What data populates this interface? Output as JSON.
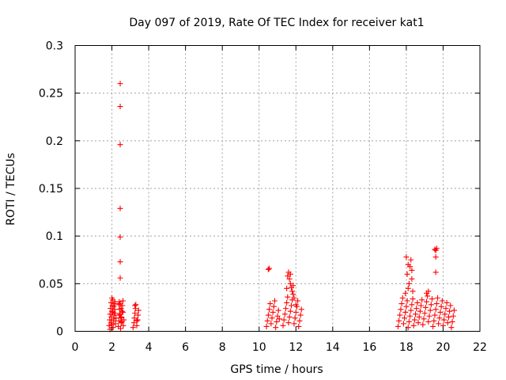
{
  "chart_data": {
    "type": "scatter",
    "title": "Day 097 of 2019, Rate Of TEC Index for receiver kat1",
    "xlabel": "GPS time / hours",
    "ylabel": "ROTI / TECUs",
    "xlim": [
      0,
      22
    ],
    "ylim": [
      0,
      0.3
    ],
    "xticks": [
      0,
      2,
      4,
      6,
      8,
      10,
      12,
      14,
      16,
      18,
      20,
      22
    ],
    "xtick_labels": [
      "0",
      "2",
      "4",
      "6",
      "8",
      "10",
      "12",
      "14",
      "16",
      "18",
      "20",
      "22"
    ],
    "yticks": [
      0,
      0.05,
      0.1,
      0.15,
      0.2,
      0.25,
      0.3
    ],
    "ytick_labels": [
      "0",
      "0.05",
      "0.1",
      "0.15",
      "0.2",
      "0.25",
      "0.3"
    ],
    "grid": true,
    "marker": "+",
    "color": "#ff0000",
    "series": [
      {
        "name": "kat1",
        "points": [
          [
            1.85,
            0.006
          ],
          [
            1.88,
            0.012
          ],
          [
            1.9,
            0.018
          ],
          [
            1.92,
            0.024
          ],
          [
            1.95,
            0.009
          ],
          [
            1.97,
            0.015
          ],
          [
            2.0,
            0.021
          ],
          [
            2.02,
            0.027
          ],
          [
            2.05,
            0.033
          ],
          [
            2.07,
            0.004
          ],
          [
            2.1,
            0.011
          ],
          [
            2.12,
            0.017
          ],
          [
            2.15,
            0.023
          ],
          [
            2.17,
            0.029
          ],
          [
            2.2,
            0.008
          ],
          [
            2.22,
            0.014
          ],
          [
            1.95,
            0.03
          ],
          [
            2.0,
            0.035
          ],
          [
            2.05,
            0.02
          ],
          [
            2.1,
            0.026
          ],
          [
            2.15,
            0.031
          ],
          [
            1.9,
            0.002
          ],
          [
            2.0,
            0.007
          ],
          [
            2.1,
            0.013
          ],
          [
            2.18,
            0.019
          ],
          [
            2.35,
            0.005
          ],
          [
            2.38,
            0.011
          ],
          [
            2.4,
            0.017
          ],
          [
            2.42,
            0.023
          ],
          [
            2.45,
            0.029
          ],
          [
            2.47,
            0.003
          ],
          [
            2.5,
            0.009
          ],
          [
            2.52,
            0.015
          ],
          [
            2.55,
            0.021
          ],
          [
            2.57,
            0.027
          ],
          [
            2.6,
            0.032
          ],
          [
            2.62,
            0.006
          ],
          [
            2.65,
            0.012
          ],
          [
            2.4,
            0.031
          ],
          [
            2.45,
            0.018
          ],
          [
            2.5,
            0.024
          ],
          [
            2.55,
            0.01
          ],
          [
            2.6,
            0.02
          ],
          [
            2.38,
            0.028
          ],
          [
            2.48,
            0.014
          ],
          [
            2.45,
            0.26
          ],
          [
            2.45,
            0.236
          ],
          [
            2.45,
            0.196
          ],
          [
            2.45,
            0.129
          ],
          [
            2.45,
            0.099
          ],
          [
            2.45,
            0.073
          ],
          [
            2.45,
            0.056
          ],
          [
            3.15,
            0.004
          ],
          [
            3.2,
            0.009
          ],
          [
            3.22,
            0.014
          ],
          [
            3.25,
            0.019
          ],
          [
            3.28,
            0.024
          ],
          [
            3.3,
            0.028
          ],
          [
            3.35,
            0.006
          ],
          [
            3.4,
            0.012
          ],
          [
            3.42,
            0.017
          ],
          [
            3.45,
            0.022
          ],
          [
            3.25,
            0.027
          ],
          [
            3.35,
            0.011
          ],
          [
            10.4,
            0.005
          ],
          [
            10.45,
            0.011
          ],
          [
            10.5,
            0.017
          ],
          [
            10.55,
            0.023
          ],
          [
            10.6,
            0.029
          ],
          [
            10.65,
            0.008
          ],
          [
            10.7,
            0.014
          ],
          [
            10.75,
            0.02
          ],
          [
            10.8,
            0.026
          ],
          [
            10.85,
            0.032
          ],
          [
            10.9,
            0.004
          ],
          [
            10.95,
            0.01
          ],
          [
            11.0,
            0.016
          ],
          [
            11.05,
            0.022
          ],
          [
            11.1,
            0.013
          ],
          [
            10.5,
            0.065
          ],
          [
            10.55,
            0.066
          ],
          [
            11.3,
            0.006
          ],
          [
            11.35,
            0.012
          ],
          [
            11.4,
            0.018
          ],
          [
            11.45,
            0.024
          ],
          [
            11.5,
            0.03
          ],
          [
            11.55,
            0.036
          ],
          [
            11.6,
            0.009
          ],
          [
            11.65,
            0.015
          ],
          [
            11.7,
            0.021
          ],
          [
            11.75,
            0.027
          ],
          [
            11.8,
            0.033
          ],
          [
            11.85,
            0.039
          ],
          [
            11.9,
            0.008
          ],
          [
            11.95,
            0.014
          ],
          [
            12.0,
            0.02
          ],
          [
            12.05,
            0.026
          ],
          [
            12.1,
            0.032
          ],
          [
            12.15,
            0.005
          ],
          [
            12.2,
            0.011
          ],
          [
            12.25,
            0.017
          ],
          [
            12.3,
            0.023
          ],
          [
            11.6,
            0.062
          ],
          [
            11.65,
            0.055
          ],
          [
            11.7,
            0.05
          ],
          [
            11.75,
            0.046
          ],
          [
            11.8,
            0.042
          ],
          [
            11.55,
            0.058
          ],
          [
            11.7,
            0.06
          ],
          [
            11.9,
            0.035
          ],
          [
            12.0,
            0.028
          ],
          [
            11.5,
            0.045
          ],
          [
            11.85,
            0.048
          ],
          [
            17.55,
            0.005
          ],
          [
            17.6,
            0.011
          ],
          [
            17.65,
            0.017
          ],
          [
            17.7,
            0.023
          ],
          [
            17.75,
            0.029
          ],
          [
            17.8,
            0.035
          ],
          [
            17.85,
            0.008
          ],
          [
            17.9,
            0.014
          ],
          [
            17.95,
            0.02
          ],
          [
            18.0,
            0.026
          ],
          [
            18.05,
            0.032
          ],
          [
            18.1,
            0.004
          ],
          [
            18.15,
            0.01
          ],
          [
            18.2,
            0.016
          ],
          [
            18.25,
            0.022
          ],
          [
            18.3,
            0.028
          ],
          [
            18.35,
            0.034
          ],
          [
            18.4,
            0.006
          ],
          [
            18.45,
            0.012
          ],
          [
            18.5,
            0.018
          ],
          [
            18.55,
            0.024
          ],
          [
            18.6,
            0.03
          ],
          [
            18.65,
            0.009
          ],
          [
            18.7,
            0.015
          ],
          [
            18.0,
            0.078
          ],
          [
            18.05,
            0.06
          ],
          [
            18.1,
            0.045
          ],
          [
            18.15,
            0.05
          ],
          [
            18.2,
            0.068
          ],
          [
            18.25,
            0.075
          ],
          [
            18.3,
            0.055
          ],
          [
            17.95,
            0.04
          ],
          [
            18.35,
            0.042
          ],
          [
            18.1,
            0.07
          ],
          [
            18.3,
            0.064
          ],
          [
            18.75,
            0.021
          ],
          [
            18.8,
            0.027
          ],
          [
            18.85,
            0.033
          ],
          [
            18.9,
            0.007
          ],
          [
            18.95,
            0.013
          ],
          [
            19.0,
            0.019
          ],
          [
            19.05,
            0.025
          ],
          [
            19.1,
            0.031
          ],
          [
            19.15,
            0.037
          ],
          [
            19.2,
            0.01
          ],
          [
            19.25,
            0.016
          ],
          [
            19.3,
            0.022
          ],
          [
            19.35,
            0.028
          ],
          [
            19.4,
            0.034
          ],
          [
            19.45,
            0.005
          ],
          [
            19.5,
            0.011
          ],
          [
            19.55,
            0.017
          ],
          [
            19.6,
            0.023
          ],
          [
            19.65,
            0.029
          ],
          [
            19.7,
            0.035
          ],
          [
            19.75,
            0.008
          ],
          [
            19.8,
            0.014
          ],
          [
            19.85,
            0.02
          ],
          [
            19.9,
            0.026
          ],
          [
            19.95,
            0.032
          ],
          [
            20.0,
            0.006
          ],
          [
            20.05,
            0.012
          ],
          [
            20.1,
            0.018
          ],
          [
            20.15,
            0.024
          ],
          [
            20.2,
            0.03
          ],
          [
            20.25,
            0.009
          ],
          [
            20.3,
            0.015
          ],
          [
            20.35,
            0.021
          ],
          [
            20.4,
            0.027
          ],
          [
            20.45,
            0.004
          ],
          [
            20.5,
            0.01
          ],
          [
            20.55,
            0.016
          ],
          [
            20.6,
            0.022
          ],
          [
            19.2,
            0.042
          ],
          [
            19.6,
            0.062
          ],
          [
            19.6,
            0.078
          ],
          [
            19.6,
            0.085
          ],
          [
            19.65,
            0.087
          ],
          [
            19.55,
            0.086
          ],
          [
            19.1,
            0.04
          ]
        ]
      }
    ]
  }
}
